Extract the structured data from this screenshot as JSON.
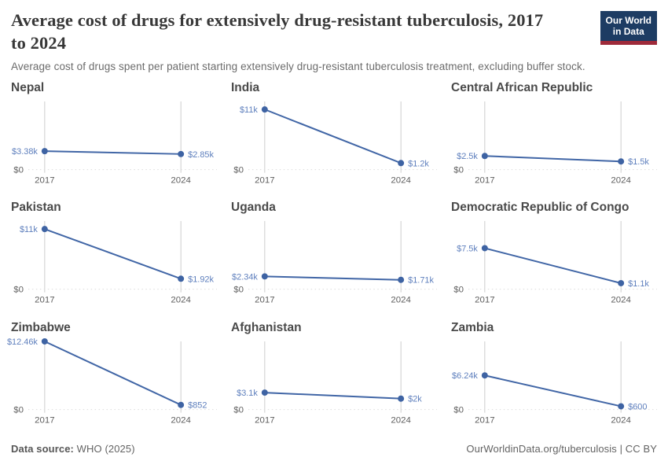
{
  "header": {
    "title_lines": [
      "Average cost of drugs for extensively drug-resistant tuberculosis, 2017",
      "to 2024"
    ],
    "subtitle": "Average cost of drugs spent per patient starting extensively drug-resistant tuberculosis treatment, excluding buffer stock.",
    "logo": {
      "line1": "Our World",
      "line2": "in Data"
    }
  },
  "chart_data": {
    "type": "line",
    "title": "Average cost of drugs for extensively drug-resistant tuberculosis, 2017 to 2024",
    "subtitle": "Average cost of drugs spent per patient starting extensively drug-resistant tuberculosis treatment, excluding buffer stock.",
    "x": [
      2017,
      2024
    ],
    "x_tick_labels": [
      "2017",
      "2024"
    ],
    "ylim": [
      0,
      12460
    ],
    "y_baseline_label": "$0",
    "grid": "vertical gridline at each x tick, dotted zero baseline",
    "legend_position": "none",
    "facets": [
      {
        "title": "Nepal",
        "values": [
          3380,
          2850
        ],
        "labels": [
          "$3.38k",
          "$2.85k"
        ]
      },
      {
        "title": "India",
        "values": [
          11000,
          1200
        ],
        "labels": [
          "$11k",
          "$1.2k"
        ]
      },
      {
        "title": "Central African Republic",
        "values": [
          2500,
          1500
        ],
        "labels": [
          "$2.5k",
          "$1.5k"
        ]
      },
      {
        "title": "Pakistan",
        "values": [
          11000,
          1920
        ],
        "labels": [
          "$11k",
          "$1.92k"
        ]
      },
      {
        "title": "Uganda",
        "values": [
          2340,
          1710
        ],
        "labels": [
          "$2.34k",
          "$1.71k"
        ]
      },
      {
        "title": "Democratic Republic of Congo",
        "values": [
          7500,
          1100
        ],
        "labels": [
          "$7.5k",
          "$1.1k"
        ]
      },
      {
        "title": "Zimbabwe",
        "values": [
          12460,
          852
        ],
        "labels": [
          "$12.46k",
          "$852"
        ]
      },
      {
        "title": "Afghanistan",
        "values": [
          3100,
          2000
        ],
        "labels": [
          "$3.1k",
          "$2k"
        ]
      },
      {
        "title": "Zambia",
        "values": [
          6240,
          600
        ],
        "labels": [
          "$6.24k",
          "$600"
        ]
      }
    ]
  },
  "footer": {
    "datasource_label": "Data source:",
    "datasource_value": "WHO (2025)",
    "link": "OurWorldinData.org/tuberculosis",
    "separator": " | ",
    "license": "CC BY"
  },
  "colors": {
    "series_line": "#4166a6",
    "data_point": "#3e63a3",
    "value_label": "#5e7fbd",
    "gridline": "#cdcdcd",
    "axis_text": "#5e5e5e",
    "logo_background": "#1d3c63",
    "logo_red_bar": "#9e2a3a"
  }
}
